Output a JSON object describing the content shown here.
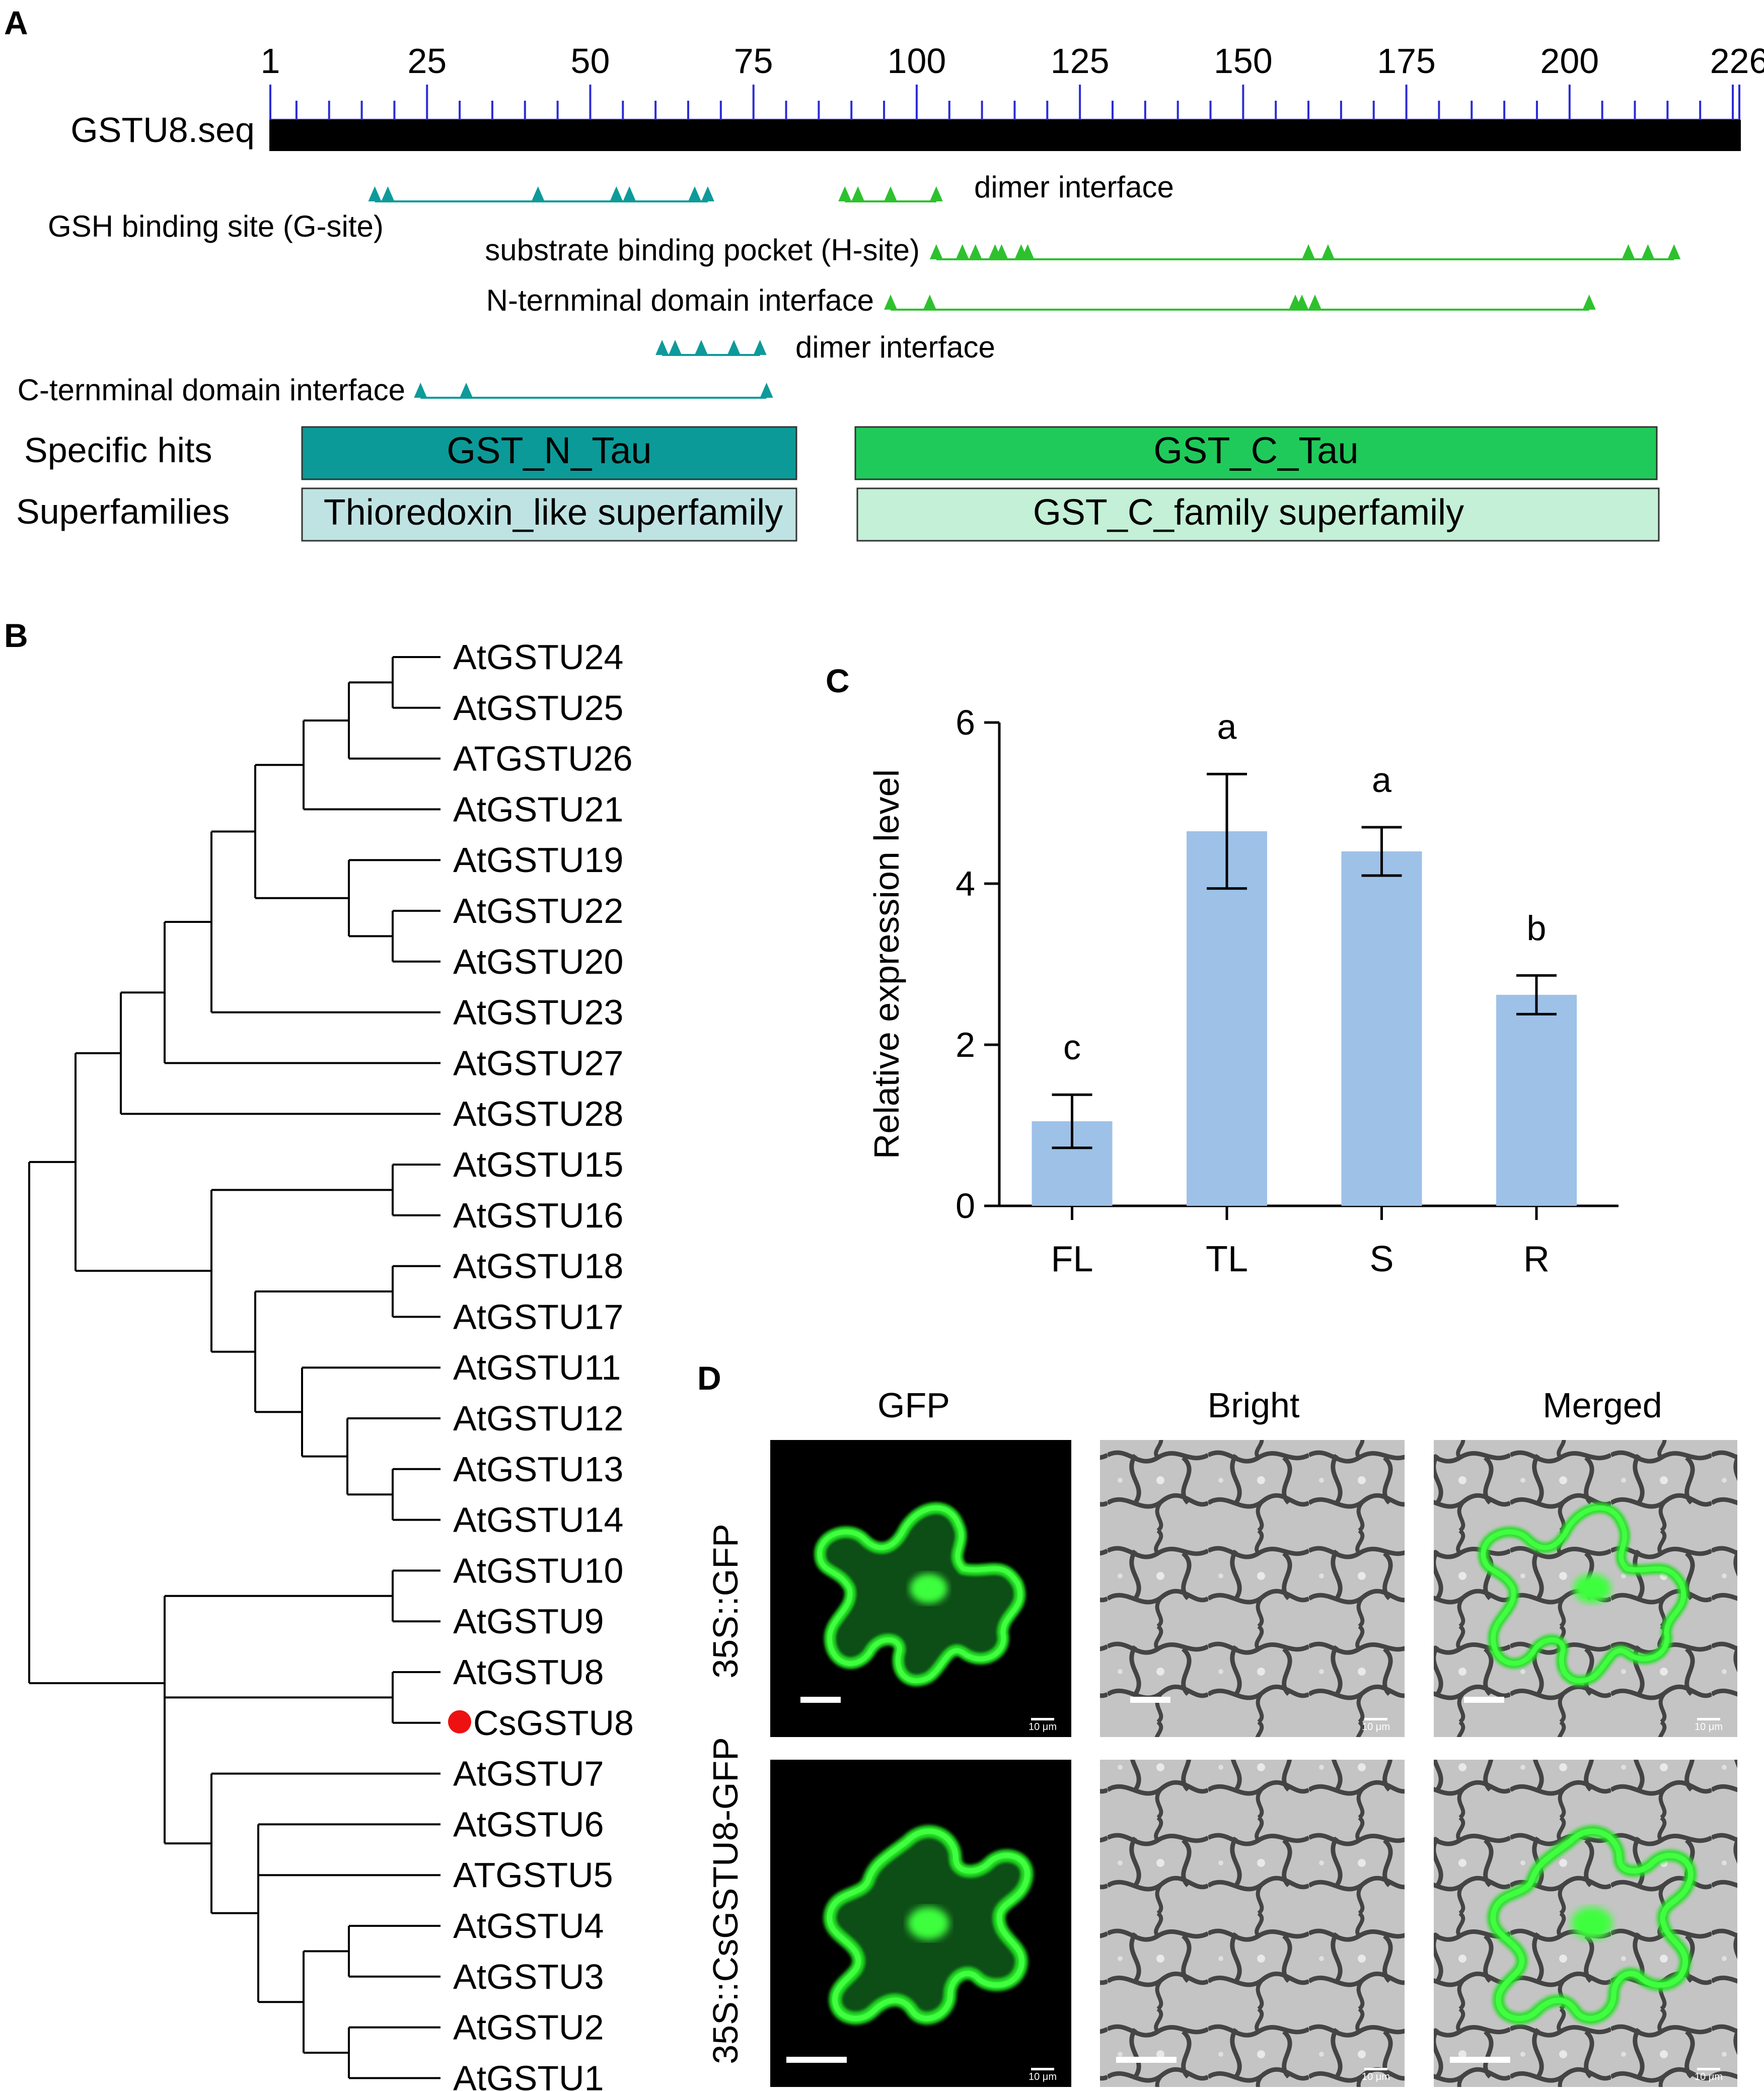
{
  "panels": {
    "a": {
      "label": "A",
      "ruler_ticks": [
        "1",
        "25",
        "50",
        "75",
        "100",
        "125",
        "150",
        "175",
        "200",
        "226"
      ],
      "sequence_name": "GSTU8.seq",
      "features": [
        {
          "label": "GSH binding site (G-site)",
          "color": "#0e9a9a",
          "positions": [
            17,
            19,
            42,
            54,
            56,
            66,
            68
          ]
        },
        {
          "label": "dimer interface",
          "color": "#2ec12e",
          "positions": [
            89,
            91,
            96,
            103
          ]
        },
        {
          "label": "substrate binding pocket (H-site)",
          "color": "#2ec12e",
          "positions": [
            103,
            107,
            109,
            112,
            113,
            116,
            117,
            160,
            163,
            209,
            212,
            216
          ]
        },
        {
          "label": "N-ternminal domain interface",
          "color": "#2ec12e",
          "positions": [
            96,
            102,
            158,
            159,
            161,
            203
          ]
        },
        {
          "label": "dimer interface",
          "color": "#0e9a9a",
          "positions": [
            61,
            63,
            67,
            72,
            76
          ]
        },
        {
          "label": "C-ternminal domain interface",
          "color": "#0e9a9a",
          "positions": [
            24,
            31,
            77
          ]
        }
      ],
      "specific_hits_label": "Specific hits",
      "superfamilies_label": "Superfamilies",
      "specific_hits": [
        {
          "label": "GST_N_Tau",
          "color": "#0b9a98"
        },
        {
          "label": "GST_C_Tau",
          "color": "#1fca5a"
        }
      ],
      "superfamilies": [
        {
          "label": "Thioredoxin_like superfamily",
          "color": "#bfe3e3"
        },
        {
          "label": "GST_C_family superfamily",
          "color": "#c3f0d6"
        }
      ]
    },
    "b": {
      "label": "B",
      "leaves": [
        "AtGSTU24",
        "AtGSTU25",
        "ATGSTU26",
        "AtGSTU21",
        "AtGSTU19",
        "AtGSTU22",
        "AtGSTU20",
        "AtGSTU23",
        "AtGSTU27",
        "AtGSTU28",
        "AtGSTU15",
        "AtGSTU16",
        "AtGSTU18",
        "AtGSTU17",
        "AtGSTU11",
        "AtGSTU12",
        "AtGSTU13",
        "AtGSTU14",
        "AtGSTU10",
        "AtGSTU9",
        "AtGSTU8",
        "CsGSTU8",
        "AtGSTU7",
        "AtGSTU6",
        "ATGSTU5",
        "AtGSTU4",
        "AtGSTU3",
        "AtGSTU2",
        "AtGSTU1"
      ],
      "highlight_leaf": "CsGSTU8",
      "highlight_color": "#ee1111"
    },
    "c": {
      "label": "C",
      "chart_data": {
        "type": "bar",
        "categories": [
          "FL",
          "TL",
          "S",
          "R"
        ],
        "values": [
          1.05,
          4.65,
          4.4,
          2.62
        ],
        "errors": [
          0.33,
          0.71,
          0.3,
          0.24
        ],
        "significance": [
          "c",
          "a",
          "a",
          "b"
        ],
        "ylabel": "Relative expression level",
        "ylim": [
          0,
          6
        ],
        "yticks": [
          "0",
          "2",
          "4",
          "6"
        ],
        "bar_color": "#9ec1e8"
      }
    },
    "d": {
      "label": "D",
      "columns": [
        "GFP",
        "Bright",
        "Merged"
      ],
      "rows": [
        "35S::GFP",
        "35S::CsGSTU8-GFP"
      ],
      "scale_text": "10 μm"
    }
  }
}
